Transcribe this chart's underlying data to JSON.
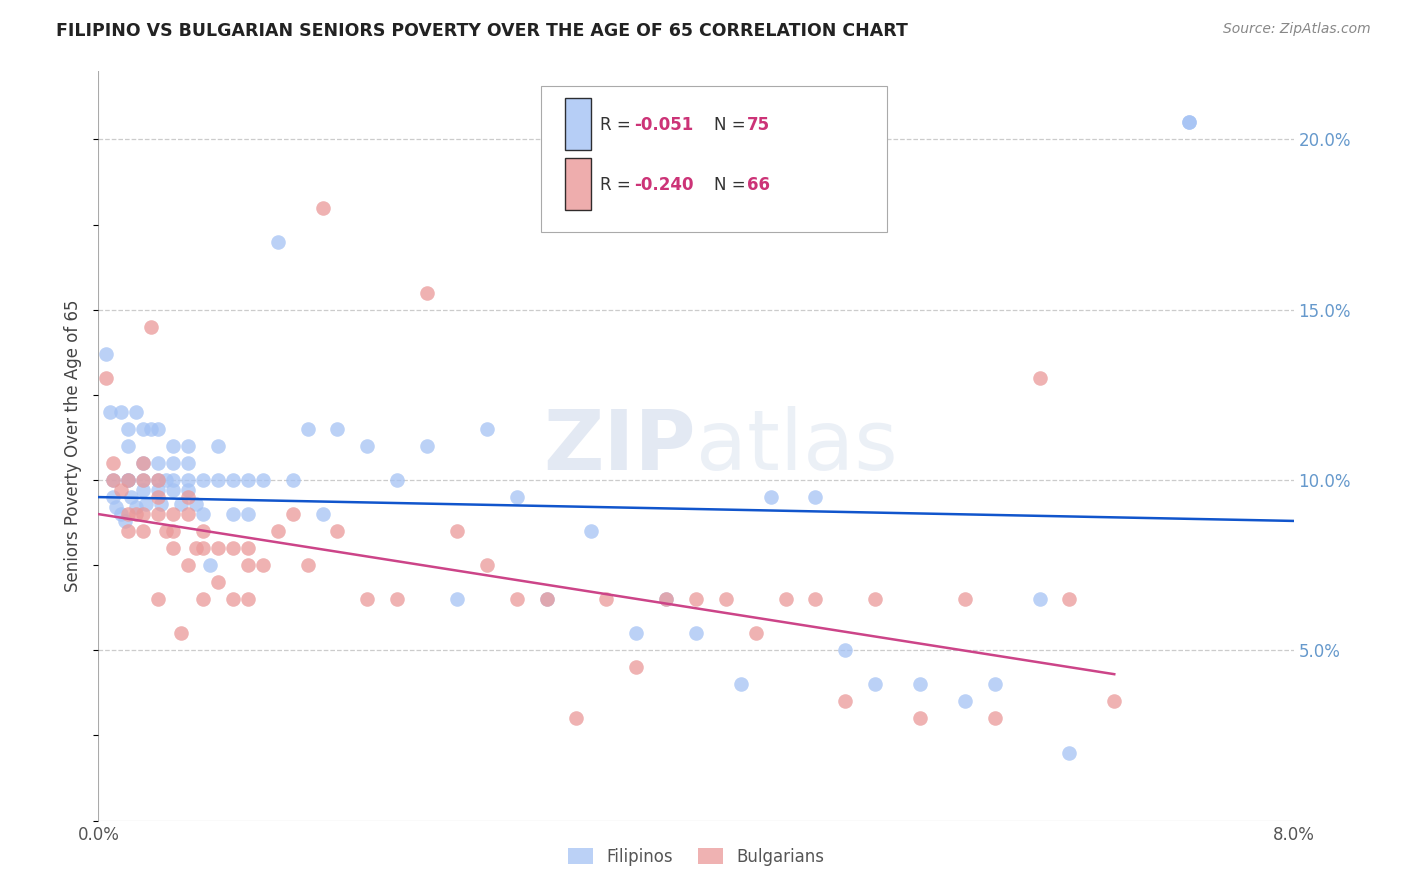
{
  "title": "FILIPINO VS BULGARIAN SENIORS POVERTY OVER THE AGE OF 65 CORRELATION CHART",
  "source": "Source: ZipAtlas.com",
  "ylabel": "Seniors Poverty Over the Age of 65",
  "xlim": [
    0.0,
    0.08
  ],
  "ylim": [
    0.0,
    0.22
  ],
  "y_ticks_right": [
    0.05,
    0.1,
    0.15,
    0.2
  ],
  "y_tick_labels_right": [
    "5.0%",
    "10.0%",
    "15.0%",
    "20.0%"
  ],
  "filipino_color": "#a4c2f4",
  "bulgarian_color": "#ea9999",
  "trend_filipino_color": "#1155cc",
  "trend_bulgarian_color": "#cc4488",
  "watermark": "ZIPatlas",
  "background_color": "#ffffff",
  "legend_r1": "R = ",
  "legend_rv1": "-0.051",
  "legend_n1": "N = ",
  "legend_nv1": "75",
  "legend_r2": "R = ",
  "legend_rv2": "-0.240",
  "legend_n2": "N = ",
  "legend_nv2": "66",
  "filipino_x": [
    0.0005,
    0.0008,
    0.001,
    0.001,
    0.0012,
    0.0015,
    0.0015,
    0.0018,
    0.002,
    0.002,
    0.002,
    0.002,
    0.0022,
    0.0025,
    0.0025,
    0.003,
    0.003,
    0.003,
    0.003,
    0.0032,
    0.0035,
    0.004,
    0.004,
    0.004,
    0.004,
    0.0042,
    0.0045,
    0.005,
    0.005,
    0.005,
    0.005,
    0.0055,
    0.006,
    0.006,
    0.006,
    0.006,
    0.0065,
    0.007,
    0.007,
    0.0075,
    0.008,
    0.008,
    0.009,
    0.009,
    0.01,
    0.01,
    0.011,
    0.012,
    0.013,
    0.014,
    0.015,
    0.016,
    0.018,
    0.02,
    0.022,
    0.024,
    0.026,
    0.028,
    0.03,
    0.033,
    0.036,
    0.038,
    0.04,
    0.043,
    0.045,
    0.048,
    0.05,
    0.052,
    0.055,
    0.058,
    0.06,
    0.063,
    0.065,
    0.073,
    0.073
  ],
  "filipino_y": [
    0.137,
    0.12,
    0.1,
    0.095,
    0.092,
    0.12,
    0.09,
    0.088,
    0.115,
    0.11,
    0.1,
    0.1,
    0.095,
    0.12,
    0.092,
    0.115,
    0.105,
    0.1,
    0.097,
    0.093,
    0.115,
    0.115,
    0.105,
    0.1,
    0.097,
    0.093,
    0.1,
    0.11,
    0.105,
    0.1,
    0.097,
    0.093,
    0.11,
    0.105,
    0.1,
    0.097,
    0.093,
    0.1,
    0.09,
    0.075,
    0.11,
    0.1,
    0.1,
    0.09,
    0.1,
    0.09,
    0.1,
    0.17,
    0.1,
    0.115,
    0.09,
    0.115,
    0.11,
    0.1,
    0.11,
    0.065,
    0.115,
    0.095,
    0.065,
    0.085,
    0.055,
    0.065,
    0.055,
    0.04,
    0.095,
    0.095,
    0.05,
    0.04,
    0.04,
    0.035,
    0.04,
    0.065,
    0.02,
    0.205,
    0.205
  ],
  "bulgarian_x": [
    0.0005,
    0.001,
    0.001,
    0.0015,
    0.002,
    0.002,
    0.002,
    0.0025,
    0.003,
    0.003,
    0.003,
    0.003,
    0.0035,
    0.004,
    0.004,
    0.004,
    0.004,
    0.0045,
    0.005,
    0.005,
    0.005,
    0.0055,
    0.006,
    0.006,
    0.006,
    0.0065,
    0.007,
    0.007,
    0.007,
    0.008,
    0.008,
    0.009,
    0.009,
    0.01,
    0.01,
    0.01,
    0.011,
    0.012,
    0.013,
    0.014,
    0.015,
    0.016,
    0.018,
    0.02,
    0.022,
    0.024,
    0.026,
    0.028,
    0.03,
    0.032,
    0.034,
    0.036,
    0.038,
    0.04,
    0.042,
    0.044,
    0.046,
    0.048,
    0.05,
    0.052,
    0.055,
    0.058,
    0.06,
    0.063,
    0.065,
    0.068
  ],
  "bulgarian_y": [
    0.13,
    0.105,
    0.1,
    0.097,
    0.1,
    0.09,
    0.085,
    0.09,
    0.105,
    0.1,
    0.09,
    0.085,
    0.145,
    0.1,
    0.095,
    0.09,
    0.065,
    0.085,
    0.09,
    0.085,
    0.08,
    0.055,
    0.095,
    0.09,
    0.075,
    0.08,
    0.085,
    0.08,
    0.065,
    0.08,
    0.07,
    0.08,
    0.065,
    0.08,
    0.075,
    0.065,
    0.075,
    0.085,
    0.09,
    0.075,
    0.18,
    0.085,
    0.065,
    0.065,
    0.155,
    0.085,
    0.075,
    0.065,
    0.065,
    0.03,
    0.065,
    0.045,
    0.065,
    0.065,
    0.065,
    0.055,
    0.065,
    0.065,
    0.035,
    0.065,
    0.03,
    0.065,
    0.03,
    0.13,
    0.065,
    0.035
  ]
}
